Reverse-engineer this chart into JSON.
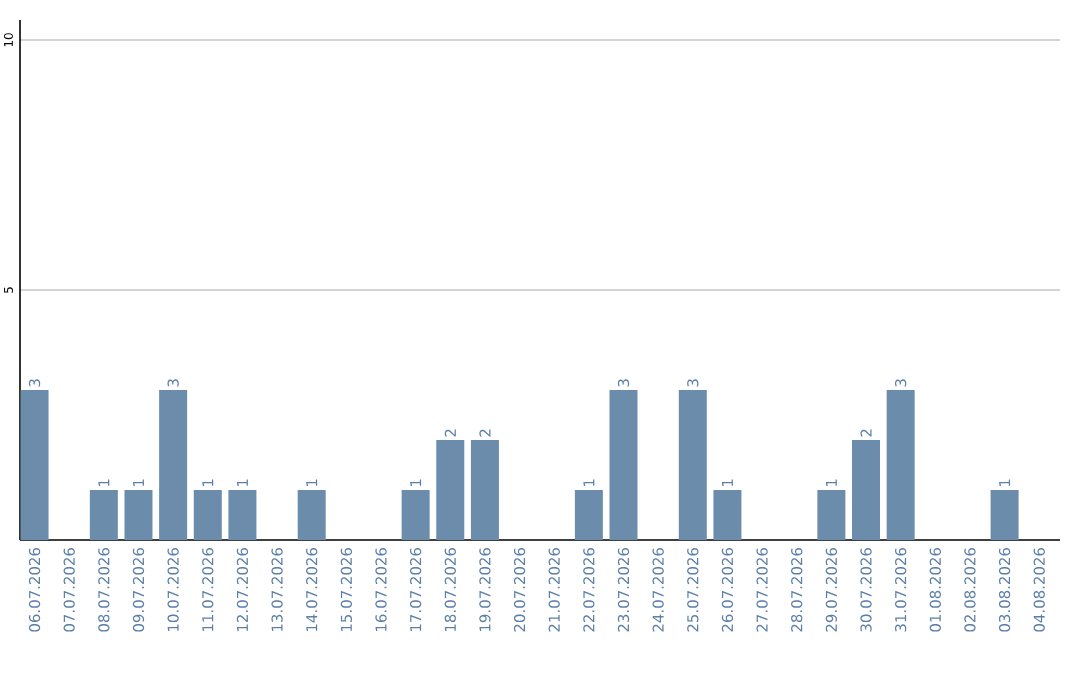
{
  "chart_data": {
    "type": "bar",
    "categories": [
      "06.07.2026",
      "07.07.2026",
      "08.07.2026",
      "09.07.2026",
      "10.07.2026",
      "11.07.2026",
      "12.07.2026",
      "13.07.2026",
      "14.07.2026",
      "15.07.2026",
      "16.07.2026",
      "17.07.2026",
      "18.07.2026",
      "19.07.2026",
      "20.07.2026",
      "21.07.2026",
      "22.07.2026",
      "23.07.2026",
      "24.07.2026",
      "25.07.2026",
      "26.07.2026",
      "27.07.2026",
      "28.07.2026",
      "29.07.2026",
      "30.07.2026",
      "31.07.2026",
      "01.08.2026",
      "02.08.2026",
      "03.08.2026",
      "04.08.2026"
    ],
    "values": [
      3,
      null,
      1,
      1,
      3,
      1,
      1,
      null,
      1,
      null,
      null,
      1,
      2,
      2,
      null,
      null,
      1,
      3,
      null,
      3,
      1,
      null,
      null,
      1,
      2,
      3,
      null,
      null,
      1,
      null
    ],
    "color": "#6b8cab",
    "data_labels": true,
    "ylim": [
      0,
      10.4
    ],
    "yticks": [
      5,
      10
    ],
    "grid": "y"
  }
}
